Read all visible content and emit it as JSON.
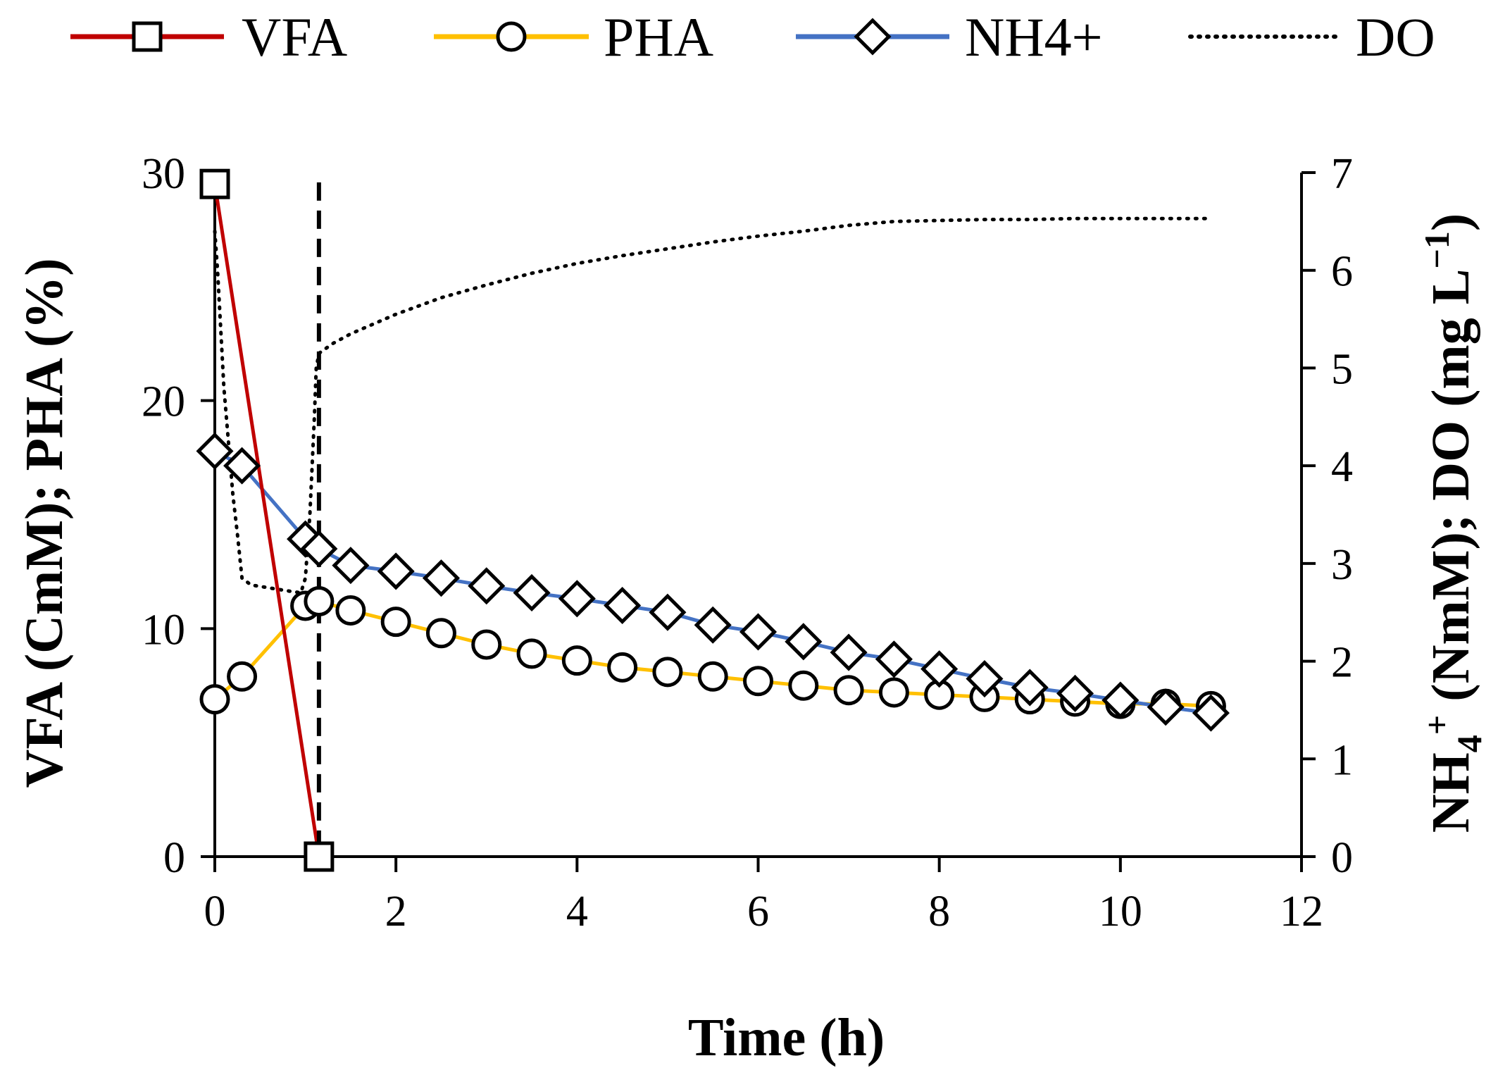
{
  "chart_data": {
    "type": "line",
    "xlabel": "Time (h)",
    "ylabel_left": "VFA (CmM); PHA (%)",
    "ylabel_right": {
      "nh": "NH",
      "nh_sub": "4",
      "nh_sup": "+",
      "rest": " (NmM); DO (mg L",
      "unit_sup": "−1",
      "close": ")"
    },
    "xlim": [
      0,
      12
    ],
    "ylim_left": [
      0,
      30
    ],
    "ylim_right": [
      0,
      7
    ],
    "x_ticks": [
      "0",
      "2",
      "4",
      "6",
      "8",
      "10",
      "12"
    ],
    "y_left_ticks": [
      "0",
      "10",
      "20",
      "30"
    ],
    "y_right_ticks": [
      "0",
      "1",
      "2",
      "3",
      "4",
      "5",
      "6",
      "7"
    ],
    "phase_marker_x": 1.15,
    "legend_position": "top",
    "legend": [
      {
        "key": "vfa",
        "label": "VFA"
      },
      {
        "key": "pha",
        "label": "PHA"
      },
      {
        "key": "nh4",
        "label": "NH4+"
      },
      {
        "key": "do",
        "label": "DO"
      }
    ],
    "colors": {
      "vfa": "#c00000",
      "pha": "#ffc000",
      "nh4": "#4472c4",
      "do": "#000000"
    },
    "series": [
      {
        "key": "vfa",
        "name": "VFA",
        "axis": "left",
        "marker": "square",
        "x": [
          0,
          1.15
        ],
        "y": [
          29.5,
          0
        ]
      },
      {
        "key": "pha",
        "name": "PHA",
        "axis": "left",
        "marker": "circle",
        "x": [
          0,
          0.3,
          1,
          1.15,
          1.5,
          2,
          2.5,
          3,
          3.5,
          4,
          4.5,
          5,
          5.5,
          6,
          6.5,
          7,
          7.5,
          8,
          8.5,
          9,
          9.5,
          10,
          10.5,
          11
        ],
        "y": [
          6.9,
          7.9,
          11.0,
          11.2,
          10.8,
          10.3,
          9.8,
          9.3,
          8.9,
          8.6,
          8.3,
          8.1,
          7.9,
          7.7,
          7.5,
          7.3,
          7.2,
          7.1,
          7.0,
          6.9,
          6.8,
          6.7,
          6.7,
          6.6
        ]
      },
      {
        "key": "nh4",
        "name": "NH4+",
        "axis": "right",
        "marker": "diamond",
        "x": [
          0,
          0.3,
          1,
          1.15,
          1.5,
          2,
          2.5,
          3,
          3.5,
          4,
          4.5,
          5,
          5.5,
          6,
          6.5,
          7,
          7.5,
          8,
          8.5,
          9,
          9.5,
          10,
          10.5,
          11
        ],
        "y": [
          4.15,
          4.0,
          3.25,
          3.15,
          2.98,
          2.92,
          2.85,
          2.77,
          2.7,
          2.64,
          2.57,
          2.5,
          2.37,
          2.3,
          2.2,
          2.09,
          2.02,
          1.92,
          1.82,
          1.73,
          1.67,
          1.6,
          1.53,
          1.47
        ]
      },
      {
        "key": "do",
        "name": "DO",
        "axis": "right",
        "marker": "none",
        "x": [
          0,
          0.03,
          0.1,
          0.2,
          0.25,
          0.3,
          0.4,
          0.6,
          0.8,
          0.95,
          1.0,
          1.05,
          1.1,
          1.12,
          1.15,
          1.3,
          1.5,
          2,
          2.5,
          3,
          3.5,
          4,
          4.5,
          5,
          5.5,
          6,
          6.5,
          7,
          7.5,
          8,
          8.5,
          9,
          9.5,
          10,
          10.5,
          11
        ],
        "y": [
          6.4,
          6.0,
          4.8,
          3.7,
          3.3,
          2.85,
          2.78,
          2.75,
          2.72,
          2.7,
          2.85,
          3.5,
          4.5,
          5.0,
          5.15,
          5.25,
          5.35,
          5.55,
          5.72,
          5.85,
          5.97,
          6.07,
          6.15,
          6.22,
          6.29,
          6.35,
          6.4,
          6.46,
          6.5,
          6.51,
          6.52,
          6.52,
          6.53,
          6.53,
          6.53,
          6.53
        ]
      }
    ]
  }
}
